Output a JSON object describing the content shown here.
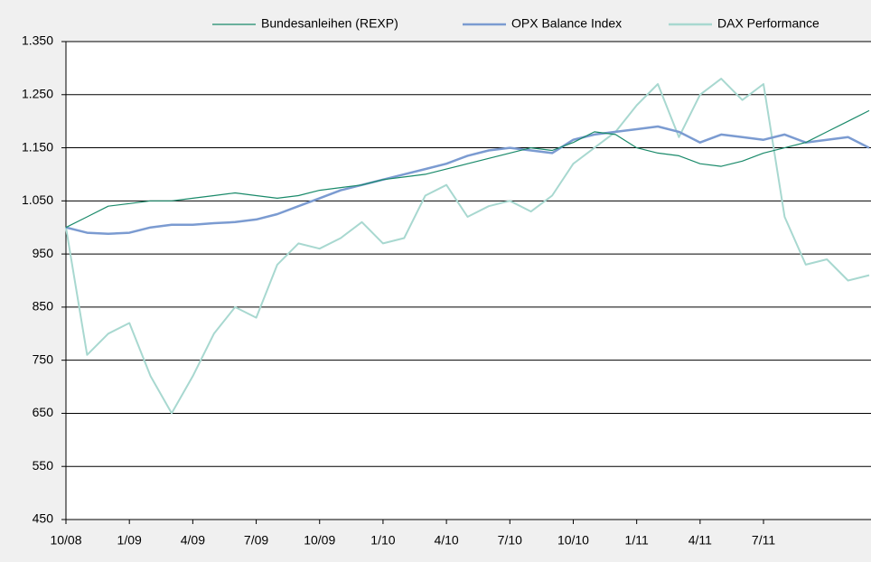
{
  "chart_data": {
    "type": "line",
    "categories": [
      "10/08",
      null,
      null,
      "1/09",
      null,
      null,
      "4/09",
      null,
      null,
      "7/09",
      null,
      null,
      "10/09",
      null,
      null,
      "1/10",
      null,
      null,
      "4/10",
      null,
      null,
      "7/10",
      null,
      null,
      "10/10",
      null,
      null,
      "1/11",
      null,
      null,
      "4/11",
      null,
      null,
      "7/11",
      null,
      null,
      null,
      null,
      null
    ],
    "series": [
      {
        "name": "Bundesanleihen (REXP)",
        "color": "#1a8a6a",
        "values": [
          1000,
          1020,
          1040,
          1045,
          1050,
          1050,
          1055,
          1060,
          1065,
          1060,
          1055,
          1060,
          1070,
          1075,
          1080,
          1090,
          1095,
          1100,
          1110,
          1120,
          1130,
          1140,
          1150,
          1145,
          1160,
          1180,
          1175,
          1150,
          1140,
          1135,
          1120,
          1115,
          1125,
          1140,
          1150,
          1160,
          1180,
          1200,
          1220
        ]
      },
      {
        "name": "OPX Balance Index",
        "color": "#7b9bd1",
        "values": [
          1000,
          990,
          988,
          990,
          1000,
          1005,
          1005,
          1008,
          1010,
          1015,
          1025,
          1040,
          1055,
          1070,
          1080,
          1090,
          1100,
          1110,
          1120,
          1135,
          1145,
          1150,
          1145,
          1140,
          1165,
          1175,
          1180,
          1185,
          1190,
          1180,
          1160,
          1175,
          1170,
          1165,
          1175,
          1160,
          1165,
          1170,
          1150
        ]
      },
      {
        "name": "DAX Performance",
        "color": "#a8d8d0",
        "values": [
          1000,
          760,
          800,
          820,
          720,
          650,
          720,
          800,
          850,
          830,
          930,
          970,
          960,
          980,
          1010,
          970,
          980,
          1060,
          1080,
          1020,
          1040,
          1050,
          1030,
          1060,
          1120,
          1150,
          1180,
          1230,
          1270,
          1170,
          1250,
          1280,
          1240,
          1270,
          1020,
          930,
          940,
          900,
          910
        ]
      }
    ],
    "ylim": [
      450,
      1350
    ],
    "yticks": [
      450,
      550,
      650,
      750,
      850,
      950,
      {
        "value": 1050,
        "label": "1.050"
      },
      {
        "value": 1150,
        "label": "1.150"
      },
      {
        "value": 1250,
        "label": "1.250"
      },
      {
        "value": 1350,
        "label": "1.350"
      }
    ],
    "grid": true,
    "legend": "top-right"
  }
}
